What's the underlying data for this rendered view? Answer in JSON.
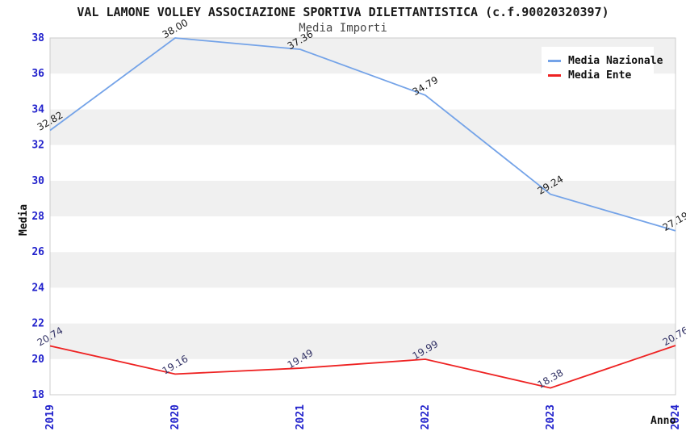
{
  "title": "VAL LAMONE VOLLEY ASSOCIAZIONE SPORTIVA DILETTANTISTICA (c.f.90020320397)",
  "subtitle": "Media Importi",
  "legend": {
    "items": [
      {
        "label": "Media Nazionale",
        "color": "#74a3e8"
      },
      {
        "label": "Media Ente",
        "color": "#ee2222"
      }
    ]
  },
  "chart_data": {
    "type": "line",
    "title": "VAL LAMONE VOLLEY ASSOCIAZIONE SPORTIVA DILETTANTISTICA (c.f.90020320397)",
    "subtitle": "Media Importi",
    "xlabel": "Anno",
    "ylabel": "Media",
    "categories": [
      "2019",
      "2020",
      "2021",
      "2022",
      "2023",
      "2024"
    ],
    "series": [
      {
        "name": "Media Nazionale",
        "color": "#74a3e8",
        "label_color": "#1a1a1a",
        "values": [
          32.82,
          38.0,
          37.36,
          34.79,
          29.24,
          27.19
        ]
      },
      {
        "name": "Media Ente",
        "color": "#ee2222",
        "label_color": "#333366",
        "values": [
          20.74,
          19.16,
          19.49,
          19.99,
          18.38,
          20.76
        ]
      }
    ],
    "ylim": [
      18,
      38
    ],
    "ytick_step": 2,
    "tick_color": "#2222cc",
    "band_colors": [
      "#ffffff",
      "#f0f0f0"
    ],
    "border_color": "#cccccc",
    "grid": "alternating-horizontal-bands",
    "legend_position": "top-right",
    "data_labels": "two-decimals-rotated"
  }
}
